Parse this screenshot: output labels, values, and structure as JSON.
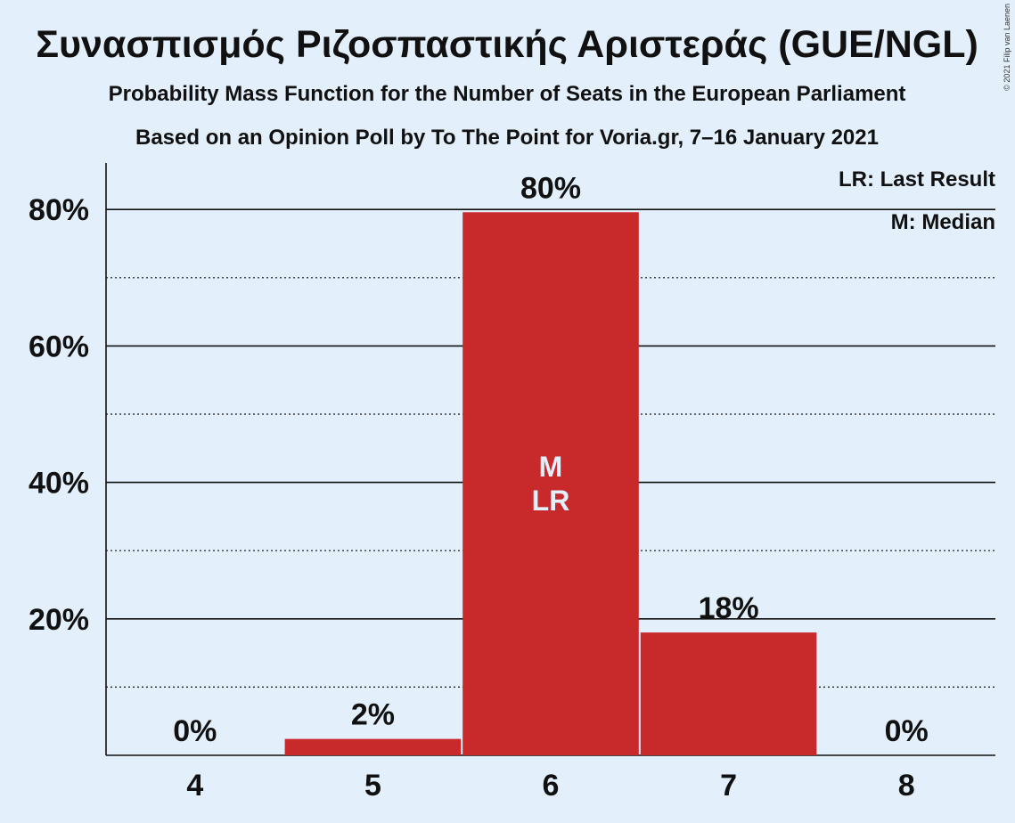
{
  "colors": {
    "background": "#e3f0fb",
    "bar": "#c8292b",
    "text": "#111111",
    "bar_label_inside": "#e3f0fb"
  },
  "copyright": "© 2021 Filip van Laenen",
  "chart_data": {
    "type": "bar",
    "title": "Συνασπισμός Ριζοσπαστικής Αριστεράς (GUE/NGL)",
    "subtitle": "Probability Mass Function for the Number of Seats in the European Parliament",
    "subtitle2": "Based on an Opinion Poll by To The Point for Voria.gr, 7–16 January 2021",
    "xlabel": "",
    "ylabel": "",
    "categories": [
      "4",
      "5",
      "6",
      "7",
      "8"
    ],
    "values": [
      0,
      2.4,
      79.6,
      18.0,
      0
    ],
    "data_labels": [
      "0%",
      "2%",
      "80%",
      "18%",
      "0%"
    ],
    "ylim": [
      0,
      87
    ],
    "yticks": [
      20,
      40,
      60,
      80
    ],
    "ytick_labels": [
      "20%",
      "40%",
      "60%",
      "80%"
    ],
    "minor_gridlines": [
      10,
      30,
      50,
      70
    ],
    "grid": true,
    "markers": [
      {
        "category": "6",
        "labels": [
          "M",
          "LR"
        ]
      }
    ],
    "legend": {
      "placement": "top-right",
      "entries": [
        "LR: Last Result",
        "M: Median"
      ]
    }
  }
}
